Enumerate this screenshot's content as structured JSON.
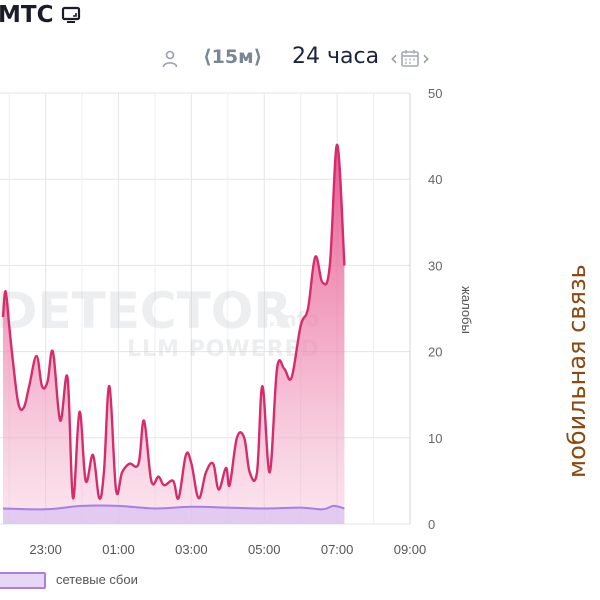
{
  "header": {
    "title": "МТС",
    "title_icon": "tv-icon",
    "person_icon": "person-icon",
    "interval": "⟨15м⟩",
    "range": "24 часа",
    "calendar_icon": "calendar-icon"
  },
  "side_label": "мобильная связь",
  "watermark": {
    "line1": "DETECTOR",
    "suffix": ".info",
    "line2": "LLM POWERED"
  },
  "chart_data": {
    "type": "area",
    "x_tick_labels": [
      "23:00",
      "01:00",
      "03:00",
      "05:00",
      "07:00",
      "09:00"
    ],
    "x_ticks_hours": [
      23,
      25,
      27,
      29,
      31,
      33
    ],
    "x_range_hours": [
      21.83,
      33
    ],
    "x_unit_note": "hours since 00:00 of first day; 25 = 01:00 next day",
    "ylim": [
      0,
      50
    ],
    "y_ticks": [
      0,
      10,
      20,
      30,
      40,
      50
    ],
    "ylabel": "жалобы",
    "grid": true,
    "series": [
      {
        "name": "",
        "color": "#d62c6c",
        "points": [
          [
            21.83,
            24
          ],
          [
            21.9,
            27
          ],
          [
            22.0,
            23
          ],
          [
            22.1,
            19
          ],
          [
            22.25,
            14
          ],
          [
            22.4,
            13.5
          ],
          [
            22.55,
            16
          ],
          [
            22.75,
            19.5
          ],
          [
            22.9,
            16
          ],
          [
            23.05,
            16.5
          ],
          [
            23.2,
            20
          ],
          [
            23.4,
            12
          ],
          [
            23.6,
            17
          ],
          [
            23.75,
            3
          ],
          [
            23.93,
            13
          ],
          [
            24.1,
            5
          ],
          [
            24.3,
            8
          ],
          [
            24.47,
            3
          ],
          [
            24.6,
            6
          ],
          [
            24.75,
            16
          ],
          [
            24.93,
            4
          ],
          [
            25.1,
            6
          ],
          [
            25.3,
            7
          ],
          [
            25.55,
            7
          ],
          [
            25.7,
            12
          ],
          [
            25.9,
            5
          ],
          [
            26.1,
            5.5
          ],
          [
            26.25,
            4.5
          ],
          [
            26.5,
            5
          ],
          [
            26.65,
            3
          ],
          [
            26.85,
            8
          ],
          [
            27.0,
            7
          ],
          [
            27.2,
            3
          ],
          [
            27.4,
            6
          ],
          [
            27.6,
            7
          ],
          [
            27.75,
            4
          ],
          [
            27.95,
            6.5
          ],
          [
            28.05,
            4.5
          ],
          [
            28.25,
            10
          ],
          [
            28.45,
            10
          ],
          [
            28.6,
            6
          ],
          [
            28.8,
            6
          ],
          [
            28.95,
            16
          ],
          [
            29.15,
            6
          ],
          [
            29.35,
            18
          ],
          [
            29.55,
            18
          ],
          [
            29.75,
            17
          ],
          [
            30.0,
            23
          ],
          [
            30.2,
            25
          ],
          [
            30.4,
            31
          ],
          [
            30.6,
            28
          ],
          [
            30.8,
            30
          ],
          [
            31.0,
            44
          ],
          [
            31.2,
            30
          ]
        ]
      },
      {
        "name": "сетевые сбои",
        "color": "#a97ee6",
        "points": [
          [
            21.83,
            1.8
          ],
          [
            23.0,
            1.7
          ],
          [
            24.0,
            2.1
          ],
          [
            25.0,
            2.1
          ],
          [
            26.0,
            1.8
          ],
          [
            27.0,
            2.0
          ],
          [
            28.0,
            1.9
          ],
          [
            29.0,
            1.8
          ],
          [
            30.0,
            1.9
          ],
          [
            30.6,
            1.7
          ],
          [
            30.9,
            2.1
          ],
          [
            31.2,
            1.8
          ]
        ]
      }
    ],
    "legend": [
      {
        "label": "сетевые сбои",
        "color": "#a97ee6",
        "placement": "bottom-left"
      }
    ]
  }
}
